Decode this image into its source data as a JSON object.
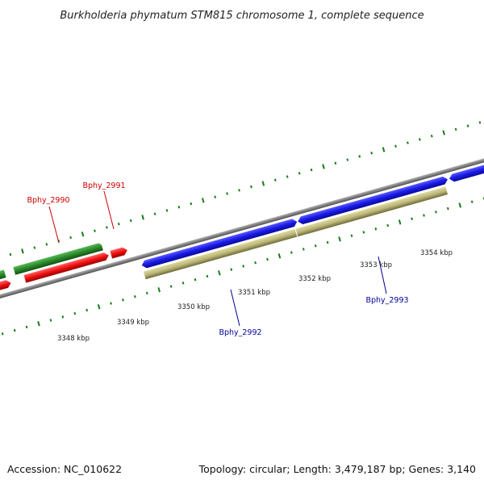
{
  "title": "Burkholderia phymatum STM815 chromosome 1, complete sequence",
  "footer": {
    "accession": "Accession: NC_010622",
    "summary": "Topology: circular; Length: 3,479,187 bp; Genes: 3,140"
  },
  "scale_labels": [
    "3348 kbp",
    "3349 kbp",
    "3350 kbp",
    "3351 kbp",
    "3352 kbp",
    "3353 kbp",
    "3354 kbp"
  ],
  "gene_labels": [
    {
      "name": "Bphy_2990",
      "color": "#cc0000"
    },
    {
      "name": "Bphy_2991",
      "color": "#cc0000"
    },
    {
      "name": "Bphy_2992",
      "color": "#000099"
    },
    {
      "name": "Bphy_2993",
      "color": "#000099"
    }
  ],
  "colors": {
    "backbone": "#888888",
    "tick": "#1a7a1a",
    "cds_forward": "#2222dd",
    "cds_reverse": "#ee1111",
    "gene_forward": "#bdb87a",
    "gene_reverse": "#2a8a2a"
  }
}
